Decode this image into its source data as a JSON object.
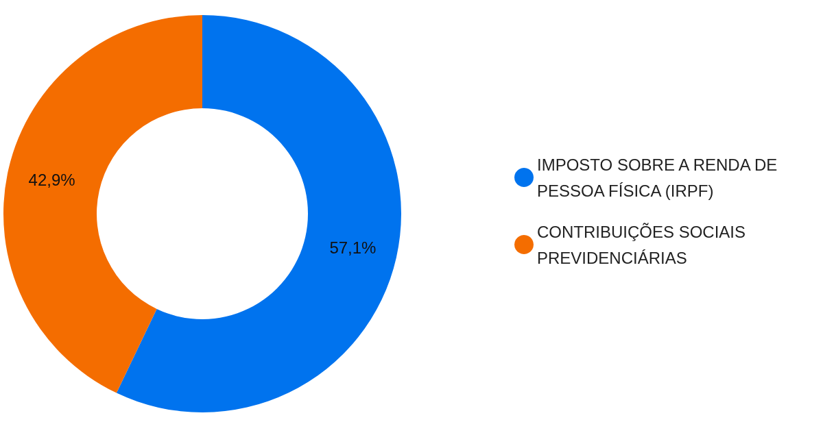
{
  "chart_data": {
    "type": "donut",
    "categories": [
      "IMPOSTO SOBRE A RENDA DE PESSOA FÍSICA (IRPF)",
      "CONTRIBUIÇÕES SOCIAIS PREVIDENCIÁRIAS"
    ],
    "values": [
      57.1,
      42.9
    ],
    "value_labels": [
      "57,1%",
      "42,9%"
    ],
    "colors": [
      "#0073ee",
      "#f46d00"
    ],
    "legend": "right"
  }
}
